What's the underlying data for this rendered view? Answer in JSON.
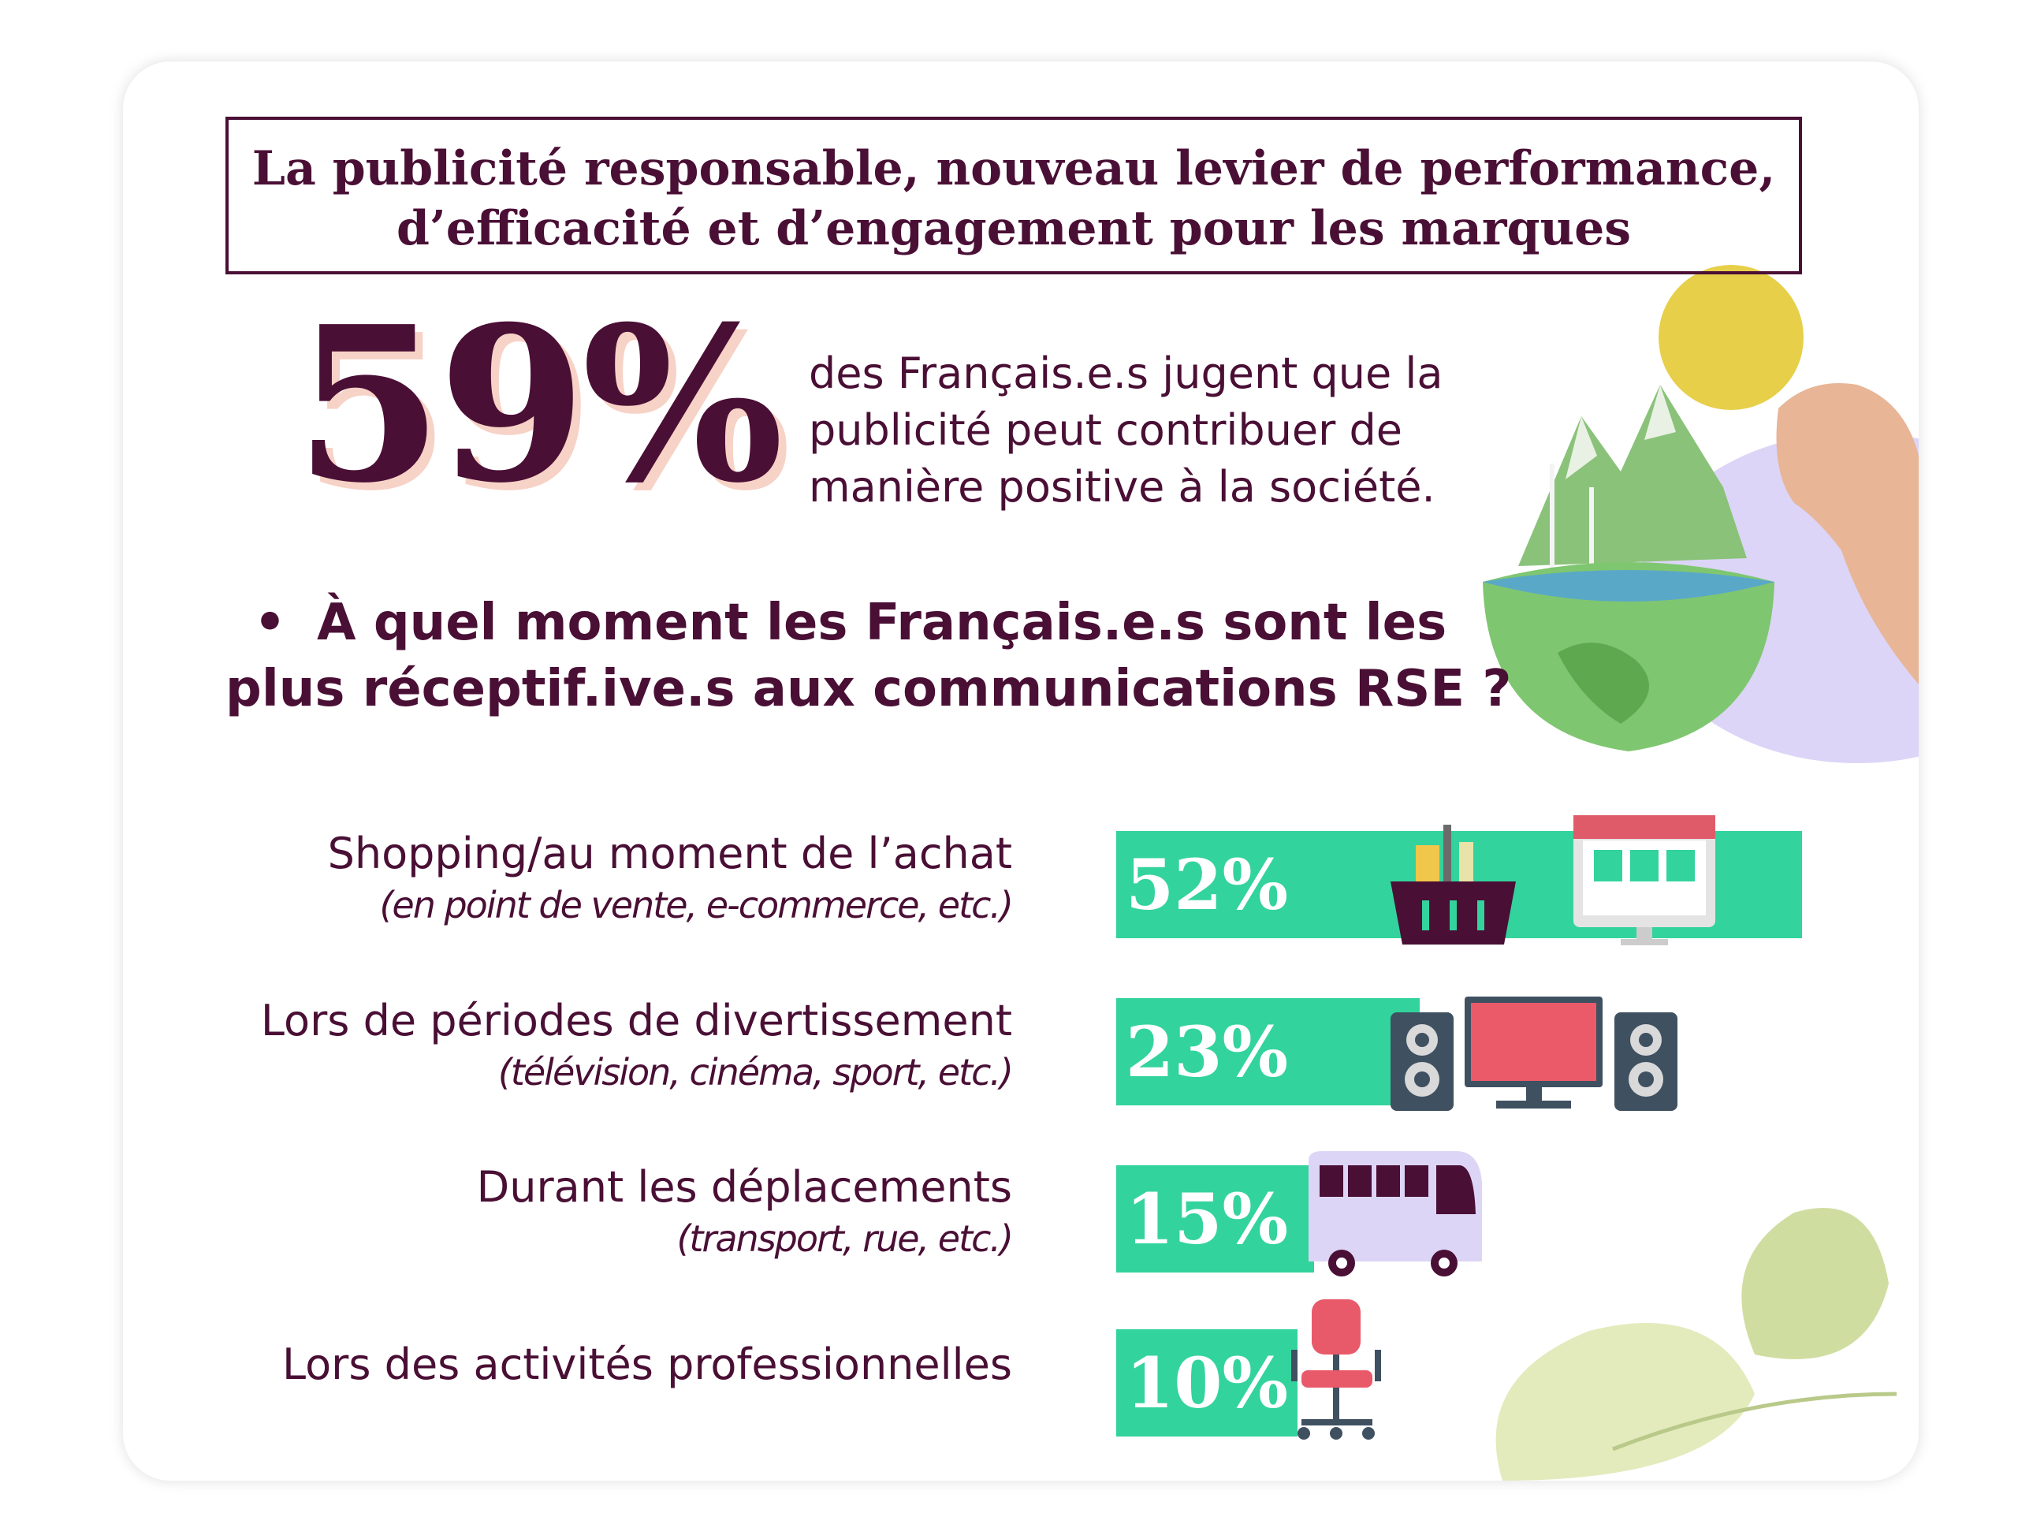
{
  "title": {
    "line1": "La publicité responsable, nouveau levier de performance,",
    "line2": "d’efficacité et d’engagement pour les marques"
  },
  "highlight": {
    "value": "59%",
    "description": [
      "des Français.e.s jugent que la",
      "publicité peut contribuer de",
      "manière positive à la société."
    ]
  },
  "question": {
    "bullet": "•",
    "line1": "À quel moment les Français.e.s sont les",
    "line2": "plus réceptif.ive.s aux communications RSE ?"
  },
  "chart_data": {
    "type": "bar",
    "orientation": "horizontal",
    "categories": [
      "Shopping/au moment de l’achat",
      "Lors de périodes de divertissement",
      "Durant les déplacements",
      "Lors des activités professionnelles"
    ],
    "subcategories": [
      "(en point de vente, e-commerce, etc.)",
      "(télévision, cinéma, sport, etc.)",
      "(transport, rue, etc.)",
      ""
    ],
    "values": [
      52,
      23,
      15,
      10
    ],
    "value_labels": [
      "52%",
      "23%",
      "15%",
      "10%"
    ],
    "unit": "%",
    "xlim": [
      0,
      52
    ],
    "bar_color": "#33d39d"
  },
  "icons": {
    "row1": [
      "shopping-basket-icon",
      "online-store-icon"
    ],
    "row2": [
      "speaker-icon",
      "television-icon",
      "speaker-icon"
    ],
    "row3": [
      "bus-icon"
    ],
    "row4": [
      "office-chair-icon"
    ]
  },
  "colors": {
    "primary": "#4a0f35",
    "accent_bar": "#33d39d",
    "shadow": "#f7d2c6",
    "lavender": "#dcd5f7"
  }
}
